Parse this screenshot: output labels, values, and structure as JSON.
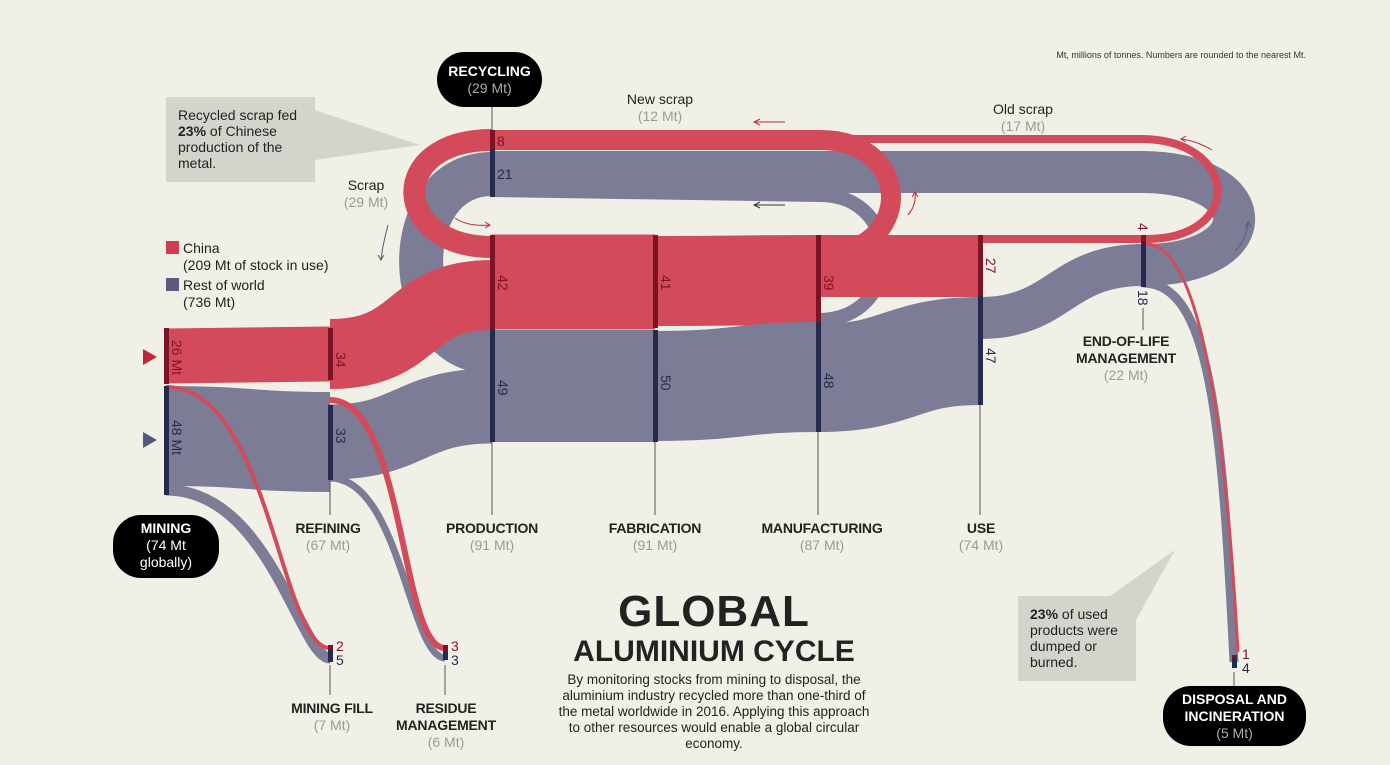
{
  "note": "Mt, millions of tonnes. Numbers are rounded to the nearest Mt.",
  "colors": {
    "china": "#d13d50",
    "rest_of_world": "#737391",
    "china_node": "#7d1426",
    "row_node": "#252b4c",
    "background": "#f1f0e6"
  },
  "legend": {
    "china": {
      "label": "China",
      "detail": "(209 Mt of stock in use)"
    },
    "row": {
      "label": "Rest of world",
      "detail": "(736 Mt)"
    }
  },
  "callout_recycled": {
    "pre": "Recycled scrap fed",
    "pct": "23%",
    "post": "of Chinese production of the metal."
  },
  "callout_dumped": {
    "pct": "23%",
    "post": "of used products were dumped or burned."
  },
  "flows": {
    "new_scrap": {
      "label": "New scrap",
      "total": "(12 Mt)"
    },
    "old_scrap": {
      "label": "Old scrap",
      "total": "(17 Mt)"
    },
    "scrap": {
      "label": "Scrap",
      "total": "(29 Mt)"
    }
  },
  "nodes": {
    "recycling": {
      "label": "RECYCLING",
      "total": "(29 Mt)",
      "china": "8",
      "row": "21"
    },
    "mining": {
      "label": "MINING",
      "total": "(74 Mt",
      "total2": "globally)",
      "china": "26 Mt",
      "row": "48 Mt"
    },
    "refining": {
      "label": "REFINING",
      "total": "(67 Mt)",
      "china": "34",
      "row": "33"
    },
    "production": {
      "label": "PRODUCTION",
      "total": "(91 Mt)",
      "china": "42",
      "row": "49"
    },
    "fabrication": {
      "label": "FABRICATION",
      "total": "(91 Mt)",
      "china": "41",
      "row": "50"
    },
    "manufacturing": {
      "label": "MANUFACTURING",
      "total": "(87 Mt)",
      "china": "39",
      "row": "48"
    },
    "use": {
      "label": "USE",
      "total": "(74 Mt)",
      "china": "27",
      "row": "47"
    },
    "end_of_life": {
      "label": "END-OF-LIFE",
      "label2": "MANAGEMENT",
      "total": "(22 Mt)",
      "china": "4",
      "row": "18"
    },
    "mining_fill": {
      "label": "MINING FILL",
      "total": "(7 Mt)",
      "china": "2",
      "row": "5"
    },
    "residue": {
      "label": "RESIDUE",
      "label2": "MANAGEMENT",
      "total": "(6 Mt)",
      "china": "3",
      "row": "3"
    },
    "disposal": {
      "label": "DISPOSAL AND",
      "label2": "INCINERATION",
      "total": "(5 Mt)",
      "china": "1",
      "row": "4"
    }
  },
  "title": {
    "line1": "GLOBAL",
    "line2": "ALUMINIUM CYCLE"
  },
  "description": "By monitoring stocks from mining to disposal, the aluminium industry recycled more than one-third of the metal worldwide in 2016. Applying this approach to other resources would enable a global circular economy."
}
